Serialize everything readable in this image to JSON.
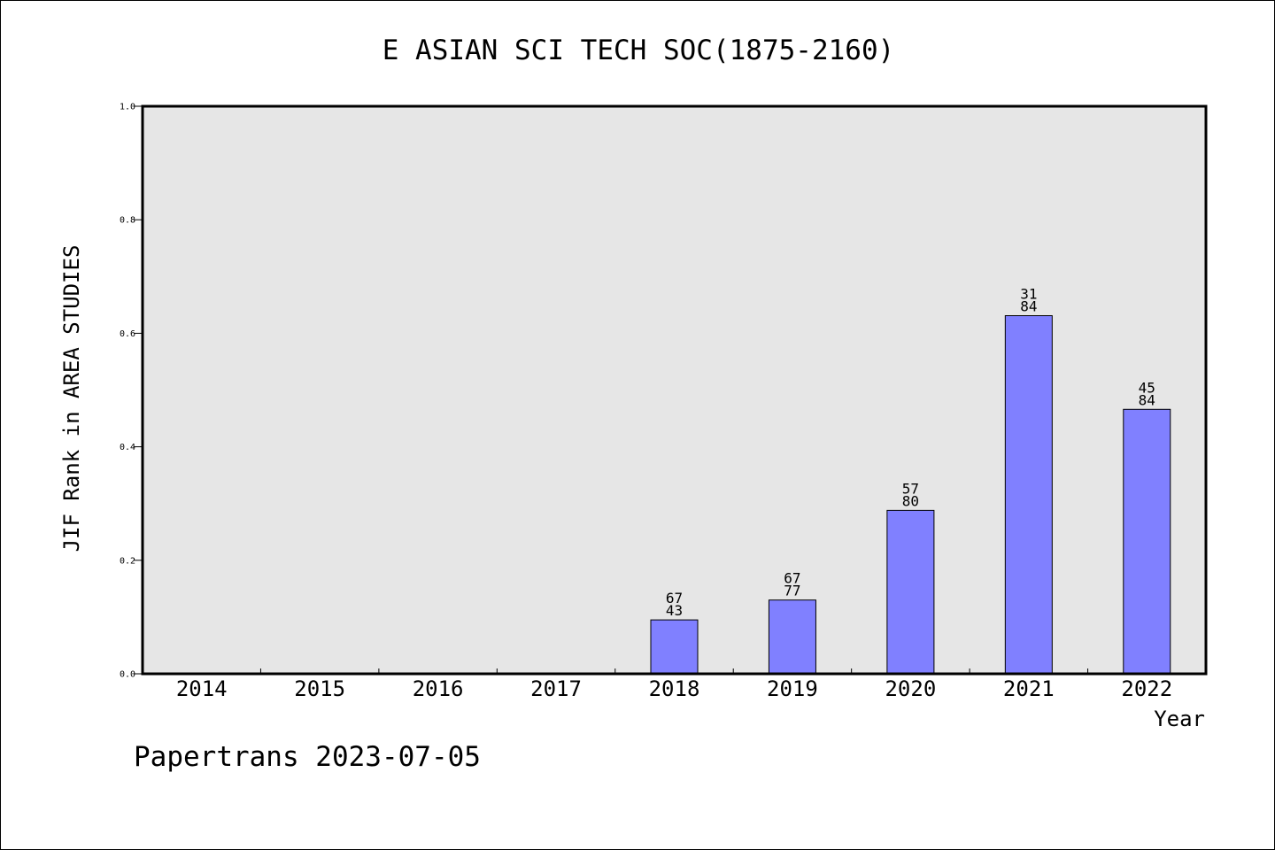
{
  "chart_data": {
    "type": "bar",
    "title": "E ASIAN SCI TECH SOC(1875-2160)",
    "xlabel": "Year",
    "ylabel": "JIF Rank in AREA STUDIES",
    "categories": [
      "2014",
      "2015",
      "2016",
      "2017",
      "2018",
      "2019",
      "2020",
      "2021",
      "2022"
    ],
    "values": [
      0,
      0,
      0,
      0,
      0.095,
      0.13,
      0.288,
      0.631,
      0.466
    ],
    "labels": [
      null,
      null,
      null,
      null,
      [
        "67",
        "43"
      ],
      [
        "67",
        "77"
      ],
      [
        "57",
        "80"
      ],
      [
        "31",
        "84"
      ],
      [
        "45",
        "84"
      ]
    ],
    "ylim": [
      0,
      1.0
    ],
    "yticks": [
      "0.0",
      "0.2",
      "0.4",
      "0.6",
      "0.8",
      "1.0"
    ],
    "grid": false,
    "colors": {
      "bar": "#8080ff",
      "plot_background": "#e6e6e6",
      "axis": "#000000"
    }
  },
  "footer": {
    "text": "Papertrans 2023-07-05"
  }
}
